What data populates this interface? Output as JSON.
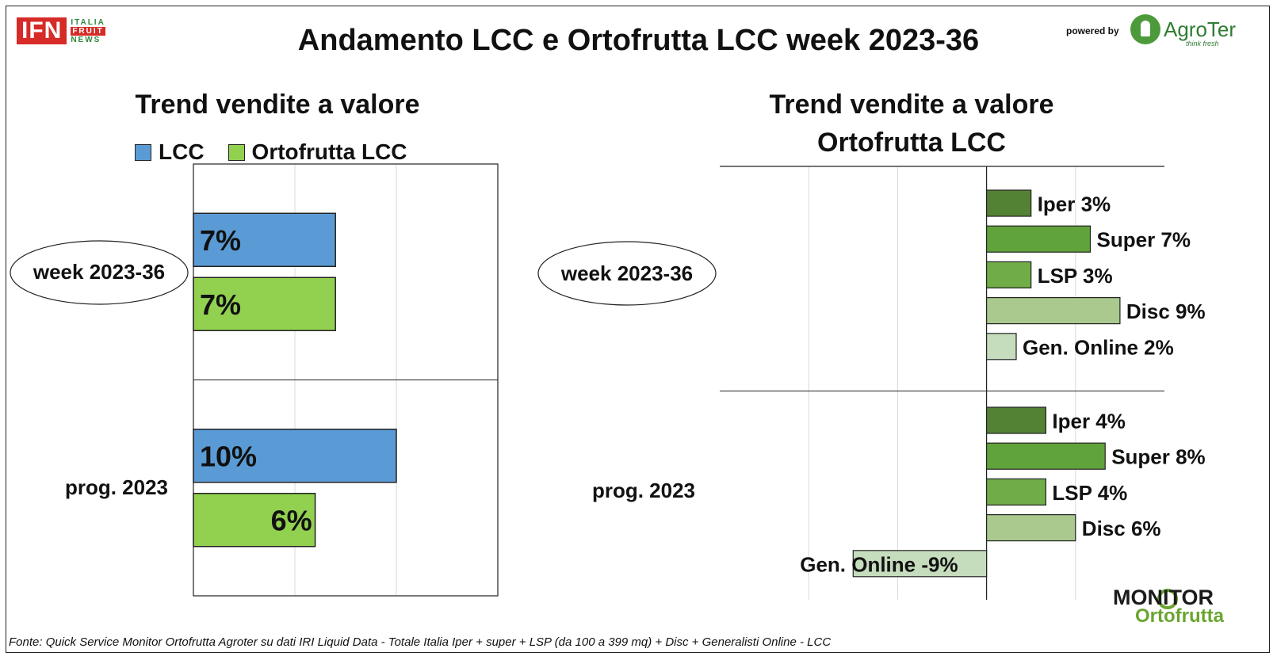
{
  "header": {
    "title": "Andamento LCC e Ortofrutta LCC week 2023-36",
    "powered_by": "powered by",
    "logo_ifn": "IFN",
    "logo_ifn_words": [
      "ITALIA",
      "FRUIT",
      "NEWS"
    ],
    "logo_agroter": "AgroTer",
    "logo_agroter_tagline": "think fresh",
    "logo_monitor": [
      "MONITOR",
      "Ortofrutta"
    ]
  },
  "footer": {
    "source": "Fonte: Quick Service Monitor Ortofrutta Agroter su dati IRI Liquid Data - Totale Italia Iper + super + LSP (da 100 a 399 mq) + Disc + Generalisti Online - LCC"
  },
  "colors": {
    "lcc": "#5b9bd5",
    "ortofrutta_lcc": "#92d050",
    "iper": "#548235",
    "super": "#5fa33a",
    "lsp": "#70ad47",
    "disc": "#a9c98f",
    "gen_online": "#c5dcbd"
  },
  "chart_data": [
    {
      "type": "bar",
      "orientation": "horizontal",
      "title": "Trend vendite a valore",
      "categories": [
        "week 2023-36",
        "prog. 2023"
      ],
      "series": [
        {
          "name": "LCC",
          "values": [
            7,
            10
          ],
          "labels": [
            "7%",
            "10%"
          ]
        },
        {
          "name": "Ortofrutta LCC",
          "values": [
            7,
            6
          ],
          "labels": [
            "7%",
            "6%"
          ]
        }
      ],
      "legend": "top",
      "grid": true,
      "unit": "%"
    },
    {
      "type": "bar",
      "orientation": "horizontal",
      "title": "Trend vendite a valore",
      "subtitle": "Ortofrutta LCC",
      "categories": [
        "week 2023-36",
        "prog. 2023"
      ],
      "groups": [
        {
          "category": "week 2023-36",
          "bars": [
            {
              "channel": "Iper",
              "value": 3,
              "label": "Iper 3%"
            },
            {
              "channel": "Super",
              "value": 7,
              "label": "Super 7%"
            },
            {
              "channel": "LSP",
              "value": 3,
              "label": "LSP 3%"
            },
            {
              "channel": "Disc",
              "value": 9,
              "label": "Disc 9%"
            },
            {
              "channel": "Gen. Online",
              "value": 2,
              "label": "Gen. Online 2%"
            }
          ]
        },
        {
          "category": "prog. 2023",
          "bars": [
            {
              "channel": "Iper",
              "value": 4,
              "label": "Iper 4%"
            },
            {
              "channel": "Super",
              "value": 8,
              "label": "Super 8%"
            },
            {
              "channel": "LSP",
              "value": 4,
              "label": "LSP 4%"
            },
            {
              "channel": "Disc",
              "value": 6,
              "label": "Disc 6%"
            },
            {
              "channel": "Gen. Online",
              "value": -9,
              "label": "Gen. Online -9%"
            }
          ]
        }
      ],
      "grid": true,
      "unit": "%"
    }
  ]
}
